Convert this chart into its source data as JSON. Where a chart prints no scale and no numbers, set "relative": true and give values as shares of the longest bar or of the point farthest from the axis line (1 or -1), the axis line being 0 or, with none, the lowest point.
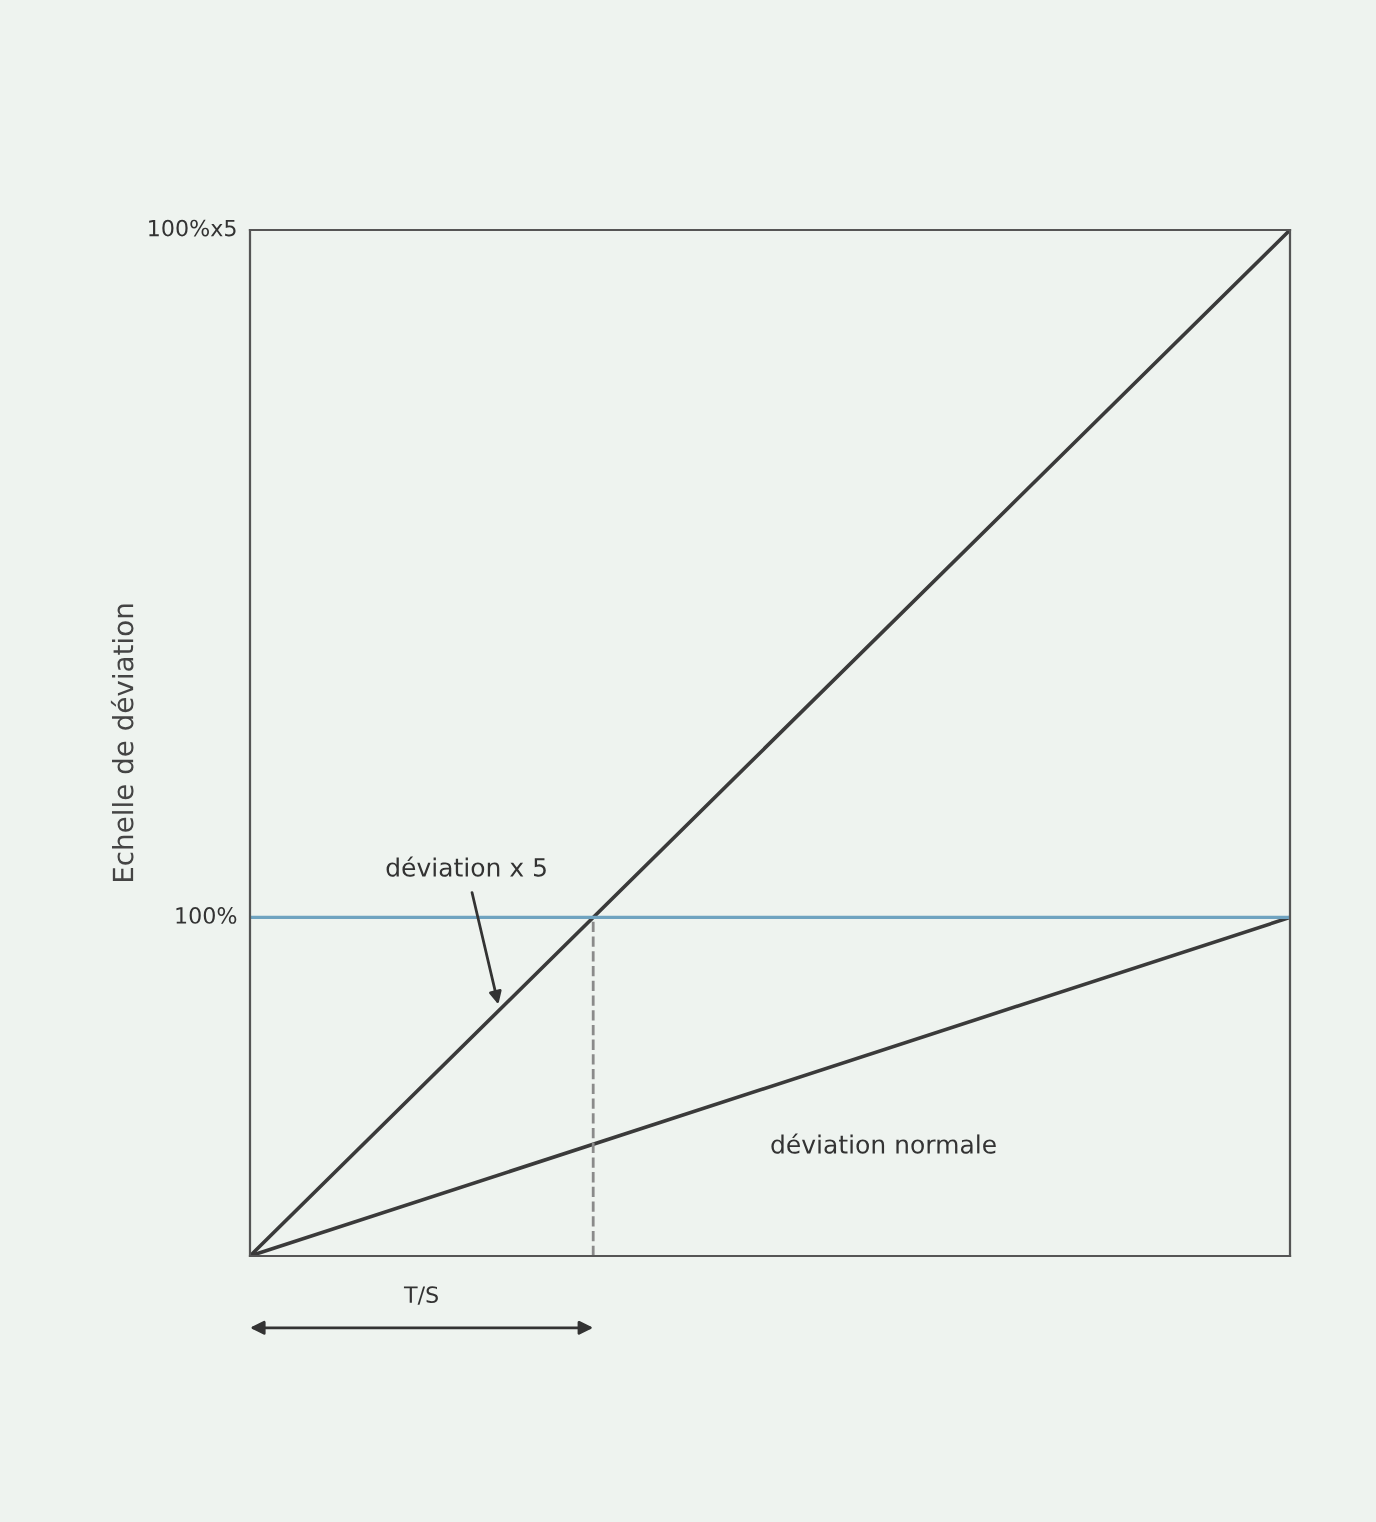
{
  "chart_data": {
    "type": "line",
    "ylabel": "Echelle de déviation",
    "relative": true,
    "categories": [
      null,
      null
    ],
    "series": [
      {
        "name": "déviation x 5",
        "color": "#3a3a3a",
        "values": [
          0,
          1
        ]
      },
      {
        "name": "déviation normale",
        "color": "#3a3a3a",
        "values": [
          0,
          0.33
        ]
      }
    ],
    "ref_lines": [
      {
        "axis": "y",
        "value": 0.33,
        "color": "#6fa3c0"
      }
    ],
    "annotations": [
      "100%x5",
      "T/S",
      "100%"
    ]
  }
}
